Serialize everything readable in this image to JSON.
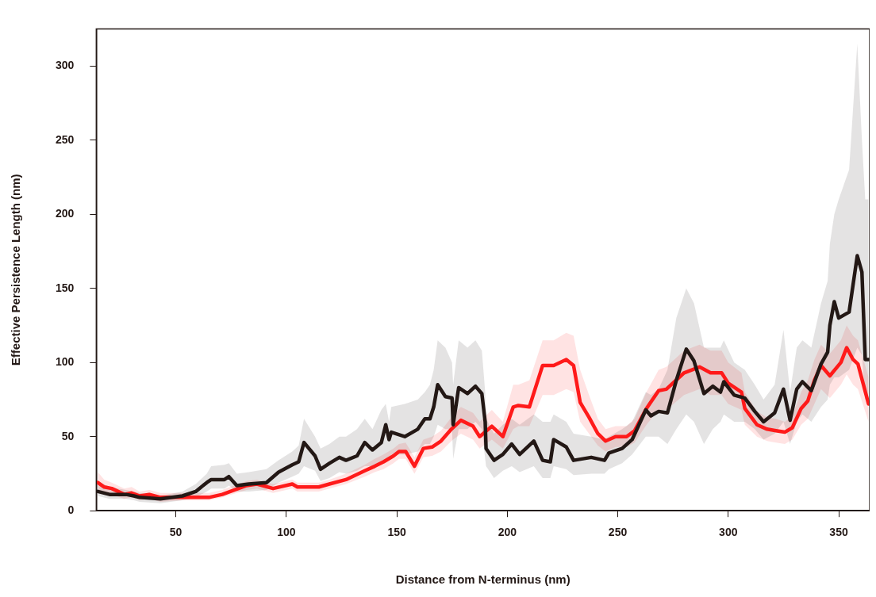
{
  "chart_data": {
    "type": "line",
    "xlabel": "Distance from N-terminus (nm)",
    "ylabel": "Effective Persistence Length (nm)",
    "xlim": [
      14,
      364
    ],
    "ylim": [
      0,
      325
    ],
    "xticks": [
      50,
      100,
      150,
      200,
      250,
      300,
      350
    ],
    "yticks": [
      0,
      50,
      100,
      150,
      200,
      250,
      300
    ],
    "grid": false,
    "legend": false,
    "marker": "none",
    "line_style": "solid",
    "series": [
      {
        "color": "#231815",
        "x": [
          14.7,
          20,
          27.5,
          31,
          33.6,
          43,
          53,
          59,
          64,
          66,
          72,
          74,
          77.6,
          83,
          91,
          96.5,
          102.7,
          105.6,
          108,
          113,
          115.5,
          119.5,
          124,
          127,
          132,
          135.5,
          139,
          143,
          145,
          146.5,
          147.5,
          153.6,
          159.5,
          162.7,
          165,
          166.7,
          168.5,
          172,
          175,
          175.5,
          178,
          182,
          185.6,
          188.5,
          190,
          190.4,
          194,
          198,
          202,
          205.6,
          212,
          216,
          219.5,
          221,
          226.7,
          230,
          238,
          244,
          246,
          252,
          256.5,
          262.7,
          265,
          268.5,
          272.5,
          276.5,
          281,
          284.5,
          289,
          293,
          296.5,
          298,
          302.7,
          307.5,
          312,
          316,
          321,
          325,
          328,
          331,
          333.6,
          337.6,
          342,
          345,
          346,
          348,
          350,
          354.7,
          358.4,
          360.5,
          362,
          363.5
        ],
        "values": [
          13,
          11,
          11,
          10,
          9,
          8,
          10,
          13,
          19,
          21,
          21,
          23,
          17,
          18,
          19,
          26,
          31,
          33,
          46,
          37,
          28,
          32,
          36,
          34,
          37,
          46,
          41,
          46,
          58,
          48,
          53,
          50,
          55,
          62,
          62,
          70,
          85,
          77,
          76,
          58,
          83,
          79,
          84,
          79,
          60,
          42,
          34,
          38,
          45,
          38,
          47,
          34,
          33,
          48,
          43,
          34,
          36,
          34,
          39,
          42,
          48,
          68,
          64,
          67,
          66,
          88,
          109,
          101,
          79,
          84,
          80,
          87,
          78,
          76,
          67,
          60,
          66,
          82,
          61,
          82,
          87,
          81,
          99,
          107,
          125,
          141,
          130,
          134,
          172,
          161,
          102,
          102
        ],
        "lower": [
          10,
          8,
          8,
          7,
          6,
          5,
          7,
          9,
          13,
          15,
          15,
          17,
          13,
          13,
          14,
          19,
          23,
          25,
          30,
          27,
          20,
          22,
          26,
          25,
          27,
          30,
          30,
          32,
          35,
          36,
          38,
          38,
          40,
          45,
          45,
          50,
          58,
          55,
          55,
          35,
          55,
          55,
          60,
          55,
          35,
          30,
          22,
          27,
          30,
          26,
          30,
          22,
          22,
          30,
          28,
          24,
          25,
          25,
          28,
          32,
          38,
          50,
          50,
          50,
          45,
          55,
          65,
          60,
          45,
          55,
          60,
          65,
          60,
          60,
          55,
          48,
          52,
          60,
          45,
          60,
          65,
          60,
          70,
          75,
          85,
          90,
          90,
          95,
          110,
          105,
          75,
          75
        ],
        "upper": [
          20,
          16,
          14,
          13,
          12,
          10,
          13,
          18,
          25,
          30,
          31,
          32,
          25,
          26,
          28,
          34,
          40,
          44,
          62,
          50,
          42,
          45,
          50,
          50,
          55,
          62,
          55,
          68,
          72,
          60,
          70,
          72,
          75,
          80,
          85,
          95,
          115,
          110,
          100,
          85,
          115,
          110,
          115,
          108,
          80,
          62,
          52,
          58,
          62,
          58,
          65,
          60,
          60,
          65,
          60,
          52,
          50,
          48,
          50,
          55,
          60,
          80,
          78,
          82,
          95,
          130,
          150,
          140,
          110,
          110,
          110,
          115,
          100,
          95,
          85,
          75,
          85,
          122,
          80,
          110,
          115,
          110,
          140,
          155,
          180,
          200,
          210,
          230,
          315,
          250,
          210,
          210
        ]
      },
      {
        "color": "#ff1a1a",
        "x": [
          14.7,
          17.6,
          21,
          26.7,
          30,
          33.6,
          38,
          43,
          53,
          65,
          71,
          82,
          86.7,
          94,
          102.7,
          105,
          114.7,
          119.5,
          127,
          135.5,
          140,
          144,
          148.5,
          151,
          154,
          158,
          162,
          166,
          170,
          174.7,
          179,
          184.5,
          187.5,
          193,
          198,
          202.7,
          205,
          210,
          216,
          221,
          226.7,
          230,
          233,
          237,
          241,
          244.5,
          249,
          254,
          257.6,
          263,
          268.5,
          272,
          280,
          287,
          292,
          297,
          300,
          306,
          307.5,
          313,
          317.6,
          321.6,
          325.6,
          329,
          333,
          336,
          339,
          342,
          346,
          351,
          353.6,
          356.5,
          358.7,
          363.5
        ],
        "values": [
          19,
          16,
          15,
          11,
          12,
          10,
          11,
          9,
          9,
          9,
          11,
          17,
          18,
          15,
          18,
          16,
          16,
          18,
          21,
          27,
          30,
          33,
          37,
          40,
          40,
          30,
          42,
          43,
          47,
          55,
          61,
          57,
          50,
          57,
          50,
          70,
          71,
          70,
          98,
          98,
          102,
          98,
          73,
          63,
          52,
          47,
          50,
          50,
          54,
          69,
          81,
          82,
          93,
          97,
          93,
          93,
          86,
          80,
          69,
          58,
          55,
          54,
          53,
          56,
          69,
          74,
          88,
          98,
          91,
          100,
          110,
          102,
          99,
          72
        ],
        "lower": [
          14,
          12,
          11,
          8,
          9,
          7,
          8,
          6,
          7,
          7,
          9,
          14,
          15,
          12,
          15,
          13,
          13,
          15,
          18,
          23,
          26,
          28,
          32,
          35,
          35,
          25,
          36,
          37,
          40,
          47,
          52,
          48,
          42,
          48,
          42,
          55,
          57,
          57,
          78,
          78,
          82,
          80,
          60,
          52,
          44,
          40,
          43,
          43,
          46,
          58,
          68,
          68,
          78,
          82,
          78,
          78,
          72,
          68,
          58,
          50,
          47,
          46,
          45,
          48,
          58,
          62,
          72,
          82,
          76,
          85,
          92,
          85,
          82,
          60
        ],
        "upper": [
          26,
          21,
          19,
          15,
          16,
          13,
          14,
          12,
          12,
          12,
          14,
          20,
          21,
          18,
          21,
          19,
          19,
          21,
          25,
          31,
          35,
          38,
          42,
          45,
          46,
          36,
          48,
          50,
          54,
          63,
          70,
          66,
          60,
          68,
          60,
          85,
          85,
          88,
          115,
          115,
          120,
          118,
          95,
          78,
          62,
          55,
          57,
          57,
          62,
          80,
          95,
          97,
          108,
          112,
          108,
          108,
          100,
          93,
          80,
          67,
          63,
          62,
          60,
          64,
          80,
          88,
          102,
          112,
          106,
          115,
          125,
          118,
          115,
          90
        ]
      }
    ]
  }
}
